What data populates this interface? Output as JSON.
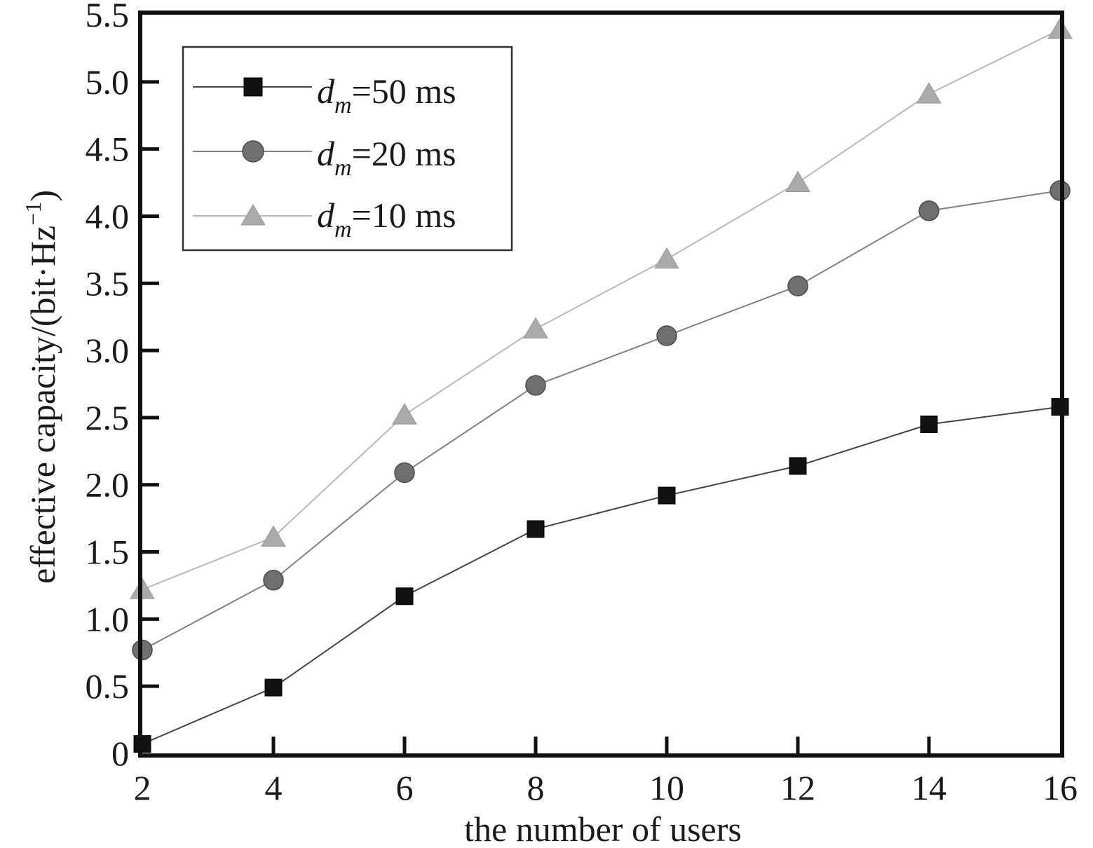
{
  "chart_data": {
    "type": "line",
    "title": "",
    "xlabel": "the number of users",
    "ylabel": "effective capacity/(bit·Hz",
    "ylabel_sup": "−1",
    "ylabel_close": ")",
    "x": [
      2,
      4,
      6,
      8,
      10,
      12,
      14,
      16
    ],
    "xlim": [
      2,
      16
    ],
    "ylim": [
      0,
      5.5
    ],
    "xticks": [
      "2",
      "4",
      "6",
      "8",
      "10",
      "12",
      "14",
      "16"
    ],
    "yticks": [
      "0",
      "0.5",
      "1.0",
      "1.5",
      "2.0",
      "2.5",
      "3.0",
      "3.5",
      "4.0",
      "4.5",
      "5.0",
      "5.5"
    ],
    "grid": false,
    "legend_position": "top-left",
    "series": [
      {
        "name": "dm=50 ms",
        "legend": {
          "symbol": "d",
          "subscript": "m",
          "rest": "=50 ms"
        },
        "marker": "square",
        "color": "#111111",
        "line_color": "#444444",
        "values": [
          0.07,
          0.49,
          1.17,
          1.67,
          1.92,
          2.14,
          2.45,
          2.58
        ]
      },
      {
        "name": "dm=20 ms",
        "legend": {
          "symbol": "d",
          "subscript": "m",
          "rest": "=20 ms"
        },
        "marker": "circle",
        "color": "#6f6f6f",
        "line_color": "#808080",
        "values": [
          0.77,
          1.29,
          2.09,
          2.74,
          3.11,
          3.48,
          4.04,
          4.19
        ]
      },
      {
        "name": "dm=10 ms",
        "legend": {
          "symbol": "d",
          "subscript": "m",
          "rest": "=10 ms"
        },
        "marker": "triangle",
        "color": "#aaaaaa",
        "line_color": "#b8b8b8",
        "values": [
          1.22,
          1.61,
          2.52,
          3.16,
          3.68,
          4.25,
          4.91,
          5.39
        ]
      }
    ]
  }
}
